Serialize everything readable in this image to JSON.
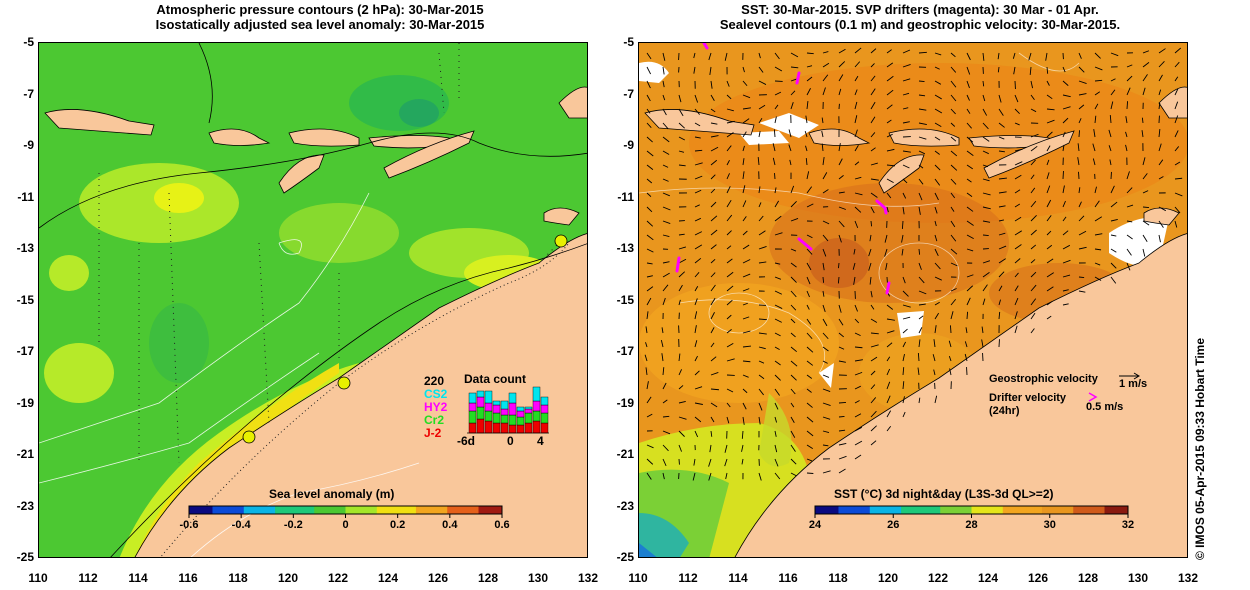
{
  "left_title": [
    "Atmospheric pressure contours (2 hPa): 30-Mar-2015",
    "Isostatically adjusted sea level anomaly: 30-Mar-2015"
  ],
  "right_title": [
    "SST: 30-Mar-2015. SVP drifters (magenta): 30 Mar - 01 Apr.",
    "Sealevel contours (0.1 m) and geostrophic velocity: 30-Mar-2015."
  ],
  "y_ticks": [
    "-5",
    "-7",
    "-9",
    "-11",
    "-13",
    "-15",
    "-17",
    "-19",
    "-21",
    "-23",
    "-25"
  ],
  "x_ticks": [
    "110",
    "112",
    "114",
    "116",
    "118",
    "120",
    "122",
    "124",
    "126",
    "128",
    "130",
    "132"
  ],
  "left_colorbar": {
    "title": "Sea level anomaly (m)",
    "ticks": [
      "-0.6",
      "-0.4",
      "-0.2",
      "0",
      "0.2",
      "0.4",
      "0.6"
    ]
  },
  "right_colorbar": {
    "title": "SST (°C) 3d night&day (L3S-3d QL>=2)",
    "ticks": [
      "24",
      "26",
      "28",
      "30",
      "32"
    ]
  },
  "data_count": {
    "title": "Data count",
    "max_label": "220",
    "sats": [
      "CS2",
      "HY2",
      "Cr2",
      "J-2"
    ],
    "sat_colors": [
      "#00e5ee",
      "#ff00ff",
      "#22dd22",
      "#ee0000"
    ],
    "x_labels": [
      "-6d",
      "0",
      "4"
    ]
  },
  "legend": {
    "geo_label": "Geostrophic velocity",
    "geo_value": "1 m/s",
    "drifter_label_1": "Drifter velocity",
    "drifter_label_2": "(24hr)",
    "drifter_value": "0.5 m/s"
  },
  "credit": "© IMOS 05-Apr-2015 09:33 Hobart Time",
  "colors": {
    "land": "#f9c79b",
    "ocean_left": "#4cc832",
    "ocean_right": "#e9961e",
    "drifter": "#ff00ff"
  }
}
